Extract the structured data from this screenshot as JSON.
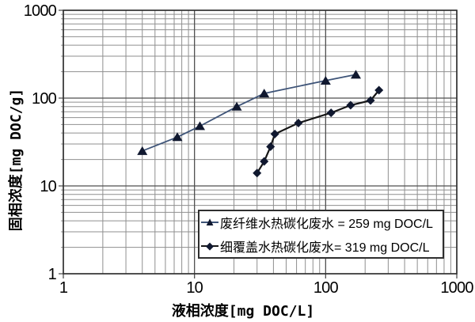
{
  "chart_data": {
    "type": "line",
    "title": "",
    "xlabel": "液相浓度[mg DOC/L]",
    "ylabel": "固相浓度[mg DOC/g]",
    "x_scale": "log",
    "y_scale": "log",
    "xlim": [
      1,
      1000
    ],
    "ylim": [
      1,
      1000
    ],
    "x_ticks": [
      "1",
      "10",
      "100",
      "1000"
    ],
    "y_ticks": [
      "1",
      "10",
      "100",
      "1000"
    ],
    "grid": "log major + minor gridlines on both axes",
    "legend_position": "inside-bottom-right",
    "series": [
      {
        "name": "废纤维水热碳化废水 = 259 mg DOC/L",
        "marker": "triangle",
        "marker_glyph": "▲",
        "line_color": "#3e5478",
        "marker_color": "#10182f",
        "points": [
          [
            4,
            25
          ],
          [
            7.4,
            36
          ],
          [
            11,
            48
          ],
          [
            21,
            80
          ],
          [
            34,
            113
          ],
          [
            100,
            158
          ],
          [
            170,
            185
          ]
        ]
      },
      {
        "name": "细覆盖水热碳化废水= 319 mg DOC/L",
        "marker": "diamond",
        "marker_glyph": "◆",
        "line_color": "#161616",
        "marker_color": "#10182f",
        "points": [
          [
            30,
            14
          ],
          [
            34,
            19
          ],
          [
            38,
            28
          ],
          [
            41,
            39
          ],
          [
            62,
            52
          ],
          [
            110,
            68
          ],
          [
            155,
            83
          ],
          [
            220,
            94
          ],
          [
            255,
            123
          ]
        ]
      }
    ],
    "colors": {
      "background": "#ffffff",
      "minor_grid": "#8f8f8f",
      "major_grid": "#4f4f4f",
      "plot_border": "#2f2f2f",
      "text": "#000000"
    }
  }
}
